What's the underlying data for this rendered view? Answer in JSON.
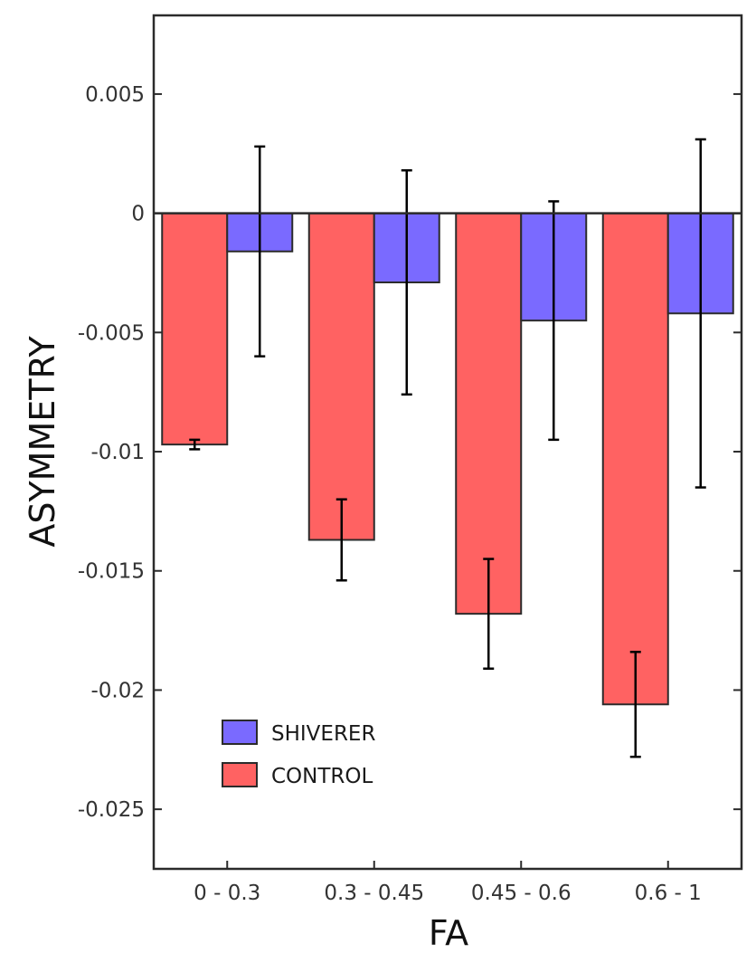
{
  "chart_data": {
    "type": "bar",
    "title": "",
    "xlabel": "FA",
    "ylabel": "ASYMMETRY",
    "categories": [
      "0 - 0.3",
      "0.3 - 0.45",
      "0.45 - 0.6",
      "0.6 - 1"
    ],
    "series": [
      {
        "name": "CONTROL",
        "color": "#ff6262",
        "values": [
          -0.0097,
          -0.0137,
          -0.0168,
          -0.0206
        ],
        "errors": [
          0.0002,
          0.0017,
          0.0023,
          0.0022
        ]
      },
      {
        "name": "SHIVERER",
        "color": "#7a6aff",
        "values": [
          -0.0016,
          -0.0029,
          -0.0045,
          -0.0042
        ],
        "errors": [
          0.0044,
          0.0047,
          0.005,
          0.0073
        ]
      }
    ],
    "ylim": [
      -0.0275,
      0.0083
    ],
    "yticks": [
      0.005,
      0,
      -0.005,
      -0.01,
      -0.015,
      -0.02,
      -0.025
    ],
    "ytick_labels": [
      "0.005",
      "0",
      "-0.005",
      "-0.01",
      "-0.015",
      "-0.02",
      "-0.025"
    ],
    "legend": {
      "location": "lower-left",
      "entries": [
        "SHIVERER",
        "CONTROL"
      ]
    },
    "grid": false
  }
}
